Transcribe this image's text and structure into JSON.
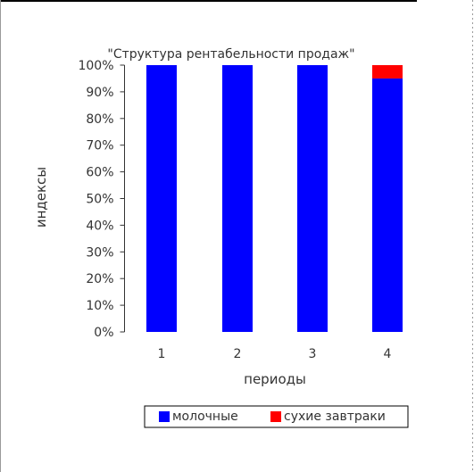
{
  "chart_data": {
    "type": "bar",
    "stacked": true,
    "normalized": true,
    "title": "\"Структура рентабельности продаж\"",
    "xlabel": "периоды",
    "ylabel": "индексы",
    "categories": [
      "1",
      "2",
      "3",
      "4"
    ],
    "y_ticks": [
      "0%",
      "10%",
      "20%",
      "30%",
      "40%",
      "50%",
      "60%",
      "70%",
      "80%",
      "90%",
      "100%"
    ],
    "ylim": [
      0,
      100
    ],
    "grid": false,
    "legend_position": "bottom",
    "series": [
      {
        "name": "молочные",
        "color": "#0000ff",
        "values": [
          100,
          100,
          100,
          95
        ]
      },
      {
        "name": "сухие завтраки",
        "color": "#ff0000",
        "values": [
          0,
          0,
          0,
          5
        ]
      }
    ]
  }
}
